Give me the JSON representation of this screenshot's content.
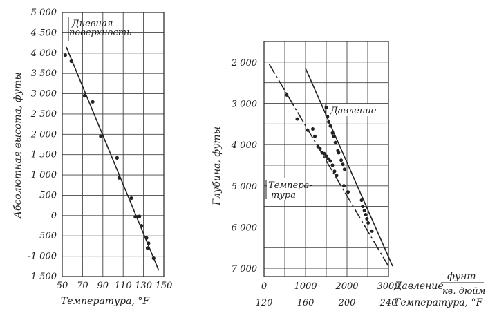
{
  "chart_data": [
    {
      "type": "scatter",
      "xlabel": "Температура, °F",
      "ylabel": "Абсолютная высота, футы",
      "annotation": "Дневная поверхность",
      "xlim": [
        50,
        150
      ],
      "ylim": [
        -1500,
        5000
      ],
      "x_ticks": [
        "50",
        "70",
        "90",
        "110",
        "130",
        "150"
      ],
      "y_ticks": [
        "5 000",
        "4 500",
        "4 000",
        "3 500",
        "3 000",
        "2 500",
        "2 000",
        "1 500",
        "1 000",
        "500",
        "0",
        "-500",
        "-1 000",
        "-1 500"
      ],
      "grid": true,
      "points": [
        [
          53,
          3950
        ],
        [
          59,
          3800
        ],
        [
          72,
          2950
        ],
        [
          80,
          2800
        ],
        [
          88,
          1950
        ],
        [
          104,
          1420
        ],
        [
          106,
          930
        ],
        [
          118,
          430
        ],
        [
          122,
          -30
        ],
        [
          124,
          -30
        ],
        [
          126,
          -20
        ],
        [
          128,
          -250
        ],
        [
          133,
          -550
        ],
        [
          134,
          -800
        ],
        [
          135,
          -680
        ],
        [
          140,
          -1050
        ]
      ],
      "fit_line": [
        [
          54,
          4150
        ],
        [
          145,
          -1350
        ]
      ]
    },
    {
      "type": "scatter",
      "ylabel": "Глубина, футы",
      "ylim": [
        1500,
        7200
      ],
      "y_ticks": [
        "2 000",
        "3 000",
        "4 000",
        "5 000",
        "6 000",
        "7 000"
      ],
      "grid": true,
      "x_axes": [
        {
          "label": "Давление",
          "unit_top": "фунт",
          "unit_bottom": "кв. дюйм",
          "range": [
            0,
            3000
          ],
          "ticks": [
            "0",
            "1000",
            "2000",
            "3000"
          ]
        },
        {
          "label": "Температура, °F",
          "range": [
            120,
            240
          ],
          "ticks": [
            "120",
            "160",
            "200",
            "240"
          ]
        }
      ],
      "series": [
        {
          "name": "Давление",
          "scale": "pressure",
          "points": [
            [
              1500,
              3100
            ],
            [
              1530,
              3320
            ],
            [
              1560,
              3450
            ],
            [
              1600,
              3550
            ],
            [
              1650,
              3720
            ],
            [
              1680,
              3800
            ],
            [
              1720,
              3950
            ],
            [
              1780,
              4150
            ],
            [
              1800,
              4200
            ],
            [
              1860,
              4380
            ],
            [
              1900,
              4480
            ],
            [
              1940,
              4600
            ],
            [
              2350,
              5350
            ],
            [
              2380,
              5500
            ],
            [
              2420,
              5600
            ],
            [
              2450,
              5700
            ],
            [
              2480,
              5800
            ],
            [
              2510,
              5900
            ],
            [
              2600,
              6100
            ]
          ],
          "fit_line": [
            [
              1000,
              2150
            ],
            [
              3100,
              6950
            ]
          ]
        },
        {
          "name": "Темпера-тура",
          "scale": "temperature",
          "points": [
            [
              142,
              2800
            ],
            [
              152,
              3380
            ],
            [
              162,
              3650
            ],
            [
              167,
              3620
            ],
            [
              169,
              3800
            ],
            [
              172,
              4050
            ],
            [
              174,
              4100
            ],
            [
              176,
              4200
            ],
            [
              178,
              4220
            ],
            [
              180,
              4280
            ],
            [
              182,
              4350
            ],
            [
              184,
              4400
            ],
            [
              186,
              4500
            ],
            [
              188,
              4650
            ],
            [
              190,
              4750
            ],
            [
              197,
              5000
            ],
            [
              201,
              5150
            ]
          ],
          "fit_line": [
            [
              125,
              2050
            ],
            [
              240,
              6950
            ]
          ]
        }
      ]
    }
  ]
}
